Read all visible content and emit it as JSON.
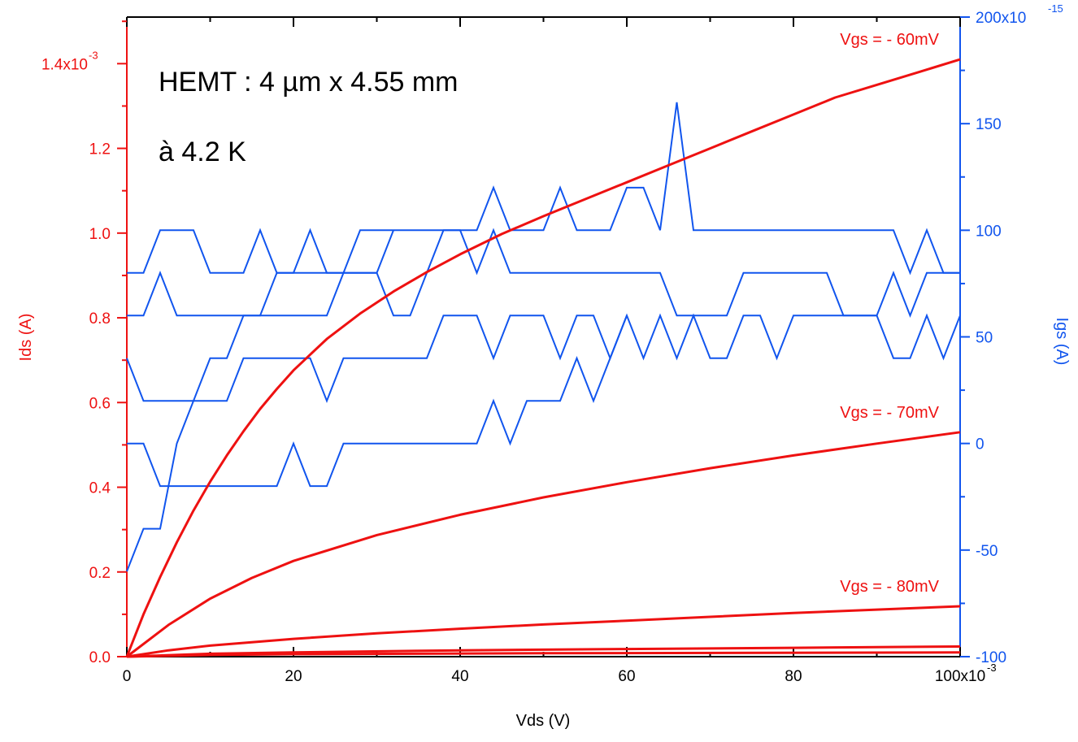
{
  "colors": {
    "left": "#ee1111",
    "right": "#1155ee",
    "text": "#000000"
  },
  "chart_data": {
    "type": "line",
    "annotations": {
      "line1": "HEMT : 4 µm x 4.55 mm",
      "line2": "à 4.2 K"
    },
    "xlabel": "Vds (V)",
    "ylabel_left": "Ids (A)",
    "ylabel_right": "Igs (A)",
    "x_ticks": [
      "0",
      "20",
      "40",
      "60",
      "80",
      "100x10"
    ],
    "x_exponent": "-3",
    "y_left_ticks": [
      "0.0",
      "0.2",
      "0.4",
      "0.6",
      "0.8",
      "1.0",
      "1.2",
      "1.4x10"
    ],
    "y_left_exponent": "-3",
    "y_right_ticks": [
      "-100",
      "-50",
      "0",
      "50",
      "100",
      "150",
      "200x10"
    ],
    "y_right_exponent": "-15",
    "xlim": [
      0,
      0.1
    ],
    "ylim_left": [
      0,
      0.00151
    ],
    "ylim_right": [
      -1e-13,
      2e-13
    ],
    "grid": false,
    "ids_series": [
      {
        "name": "Vgs = - 60mV",
        "x": [
          0,
          0.002,
          0.004,
          0.006,
          0.008,
          0.01,
          0.012,
          0.014,
          0.016,
          0.018,
          0.02,
          0.024,
          0.028,
          0.032,
          0.036,
          0.04,
          0.045,
          0.05,
          0.055,
          0.06,
          0.065,
          0.07,
          0.075,
          0.08,
          0.085,
          0.09,
          0.095,
          0.1
        ],
        "y": [
          0,
          0.0001,
          0.000188,
          0.00027,
          0.000345,
          0.000413,
          0.000475,
          0.000532,
          0.000585,
          0.000632,
          0.000676,
          0.00075,
          0.00081,
          0.000862,
          0.000908,
          0.00095,
          0.000998,
          0.00104,
          0.00108,
          0.00112,
          0.00116,
          0.0012,
          0.00124,
          0.00128,
          0.00132,
          0.00135,
          0.00138,
          0.00141
        ]
      },
      {
        "name": "Vgs = - 70mV",
        "x": [
          0,
          0.005,
          0.01,
          0.015,
          0.02,
          0.03,
          0.04,
          0.05,
          0.06,
          0.07,
          0.08,
          0.09,
          0.1
        ],
        "y": [
          0,
          7.5e-05,
          0.000137,
          0.000186,
          0.000226,
          0.000287,
          0.000335,
          0.000376,
          0.000412,
          0.000445,
          0.000475,
          0.000503,
          0.00053
        ]
      },
      {
        "name": "Vgs = - 80mV",
        "x": [
          0,
          0.005,
          0.01,
          0.02,
          0.03,
          0.04,
          0.05,
          0.06,
          0.07,
          0.08,
          0.09,
          0.1
        ],
        "y": [
          0,
          1.5e-05,
          2.6e-05,
          4.2e-05,
          5.5e-05,
          6.6e-05,
          7.6e-05,
          8.5e-05,
          9.4e-05,
          0.000103,
          0.000111,
          0.000119
        ]
      },
      {
        "name": "",
        "x": [
          0,
          0.01,
          0.02,
          0.04,
          0.06,
          0.08,
          0.1
        ],
        "y": [
          0,
          7e-06,
          1e-05,
          1.5e-05,
          1.8e-05,
          2.1e-05,
          2.4e-05
        ]
      },
      {
        "name": "",
        "x": [
          0,
          0.01,
          0.02,
          0.05,
          0.1
        ],
        "y": [
          0,
          4e-06,
          6e-06,
          8e-06,
          1e-05
        ]
      }
    ],
    "igs_series": [
      {
        "x": [
          0,
          0.002,
          0.004,
          0.006,
          0.008,
          0.01,
          0.012,
          0.014,
          0.016,
          0.018,
          0.02,
          0.022,
          0.024,
          0.026,
          0.028,
          0.03,
          0.032,
          0.034,
          0.036,
          0.038,
          0.04,
          0.042,
          0.044,
          0.046,
          0.048,
          0.05,
          0.052,
          0.054,
          0.056,
          0.058,
          0.06,
          0.062,
          0.064,
          0.066,
          0.068,
          0.07,
          0.072,
          0.074,
          0.076,
          0.078,
          0.08,
          0.082,
          0.084,
          0.086,
          0.088,
          0.09,
          0.092,
          0.094,
          0.096,
          0.098,
          0.1
        ],
        "y": [
          8e-14,
          8e-14,
          1e-13,
          1e-13,
          1e-13,
          8e-14,
          8e-14,
          8e-14,
          1e-13,
          8e-14,
          8e-14,
          1e-13,
          8e-14,
          8e-14,
          1e-13,
          1e-13,
          1e-13,
          1e-13,
          1e-13,
          1e-13,
          1e-13,
          1e-13,
          1.2e-13,
          1e-13,
          1e-13,
          1e-13,
          1.2e-13,
          1e-13,
          1e-13,
          1e-13,
          1.2e-13,
          1.2e-13,
          1e-13,
          1.6e-13,
          1e-13,
          1e-13,
          1e-13,
          1e-13,
          1e-13,
          1e-13,
          1e-13,
          1e-13,
          1e-13,
          1e-13,
          1e-13,
          1e-13,
          1e-13,
          8e-14,
          1e-13,
          8e-14,
          8e-14
        ]
      },
      {
        "x": [
          0,
          0.002,
          0.004,
          0.006,
          0.008,
          0.01,
          0.012,
          0.014,
          0.016,
          0.018,
          0.02,
          0.022,
          0.024,
          0.026,
          0.028,
          0.03,
          0.032,
          0.034,
          0.036,
          0.038,
          0.04,
          0.042,
          0.044,
          0.046,
          0.048,
          0.05,
          0.052,
          0.054,
          0.056,
          0.058,
          0.06,
          0.062,
          0.064,
          0.066,
          0.068,
          0.07,
          0.072,
          0.074,
          0.076,
          0.078,
          0.08,
          0.082,
          0.084,
          0.086,
          0.088,
          0.09,
          0.092,
          0.094,
          0.096,
          0.098,
          0.1
        ],
        "y": [
          6e-14,
          6e-14,
          8e-14,
          6e-14,
          6e-14,
          6e-14,
          6e-14,
          6e-14,
          6e-14,
          6e-14,
          6e-14,
          6e-14,
          6e-14,
          8e-14,
          8e-14,
          8e-14,
          6e-14,
          6e-14,
          8e-14,
          1e-13,
          1e-13,
          8e-14,
          1e-13,
          8e-14,
          8e-14,
          8e-14,
          8e-14,
          8e-14,
          8e-14,
          8e-14,
          8e-14,
          8e-14,
          8e-14,
          6e-14,
          6e-14,
          6e-14,
          6e-14,
          8e-14,
          8e-14,
          8e-14,
          8e-14,
          8e-14,
          8e-14,
          6e-14,
          6e-14,
          6e-14,
          8e-14,
          6e-14,
          8e-14,
          8e-14,
          8e-14
        ]
      },
      {
        "x": [
          0,
          0.002,
          0.004,
          0.006,
          0.008,
          0.01,
          0.012,
          0.014,
          0.016,
          0.018,
          0.02,
          0.022,
          0.024,
          0.026,
          0.028,
          0.03,
          0.032,
          0.034,
          0.036,
          0.038,
          0.04,
          0.042,
          0.044,
          0.046,
          0.048,
          0.05,
          0.052,
          0.054,
          0.056,
          0.058,
          0.06,
          0.062,
          0.064,
          0.066,
          0.068,
          0.07,
          0.072,
          0.074,
          0.076,
          0.078,
          0.08,
          0.082,
          0.084,
          0.086,
          0.088,
          0.09,
          0.092,
          0.094,
          0.096,
          0.098,
          0.1
        ],
        "y": [
          4e-14,
          2e-14,
          2e-14,
          2e-14,
          2e-14,
          2e-14,
          2e-14,
          4e-14,
          4e-14,
          4e-14,
          4e-14,
          4e-14,
          2e-14,
          4e-14,
          4e-14,
          4e-14,
          4e-14,
          4e-14,
          4e-14,
          6e-14,
          6e-14,
          6e-14,
          4e-14,
          6e-14,
          6e-14,
          6e-14,
          4e-14,
          6e-14,
          6e-14,
          4e-14,
          6e-14,
          4e-14,
          6e-14,
          4e-14,
          6e-14,
          4e-14,
          4e-14,
          6e-14,
          6e-14,
          4e-14,
          6e-14,
          6e-14,
          6e-14,
          6e-14,
          6e-14,
          6e-14,
          4e-14,
          4e-14,
          6e-14,
          4e-14,
          6e-14
        ]
      },
      {
        "x": [
          0,
          0.002,
          0.004,
          0.006,
          0.008,
          0.01,
          0.012,
          0.014,
          0.016,
          0.018,
          0.02,
          0.022,
          0.024,
          0.026,
          0.028,
          0.03,
          0.032,
          0.034,
          0.036,
          0.038,
          0.04,
          0.042,
          0.044,
          0.046,
          0.048,
          0.05,
          0.052,
          0.054,
          0.056,
          0.058,
          0.06
        ],
        "y": [
          0,
          0,
          -2e-14,
          -2e-14,
          -2e-14,
          -2e-14,
          -2e-14,
          -2e-14,
          -2e-14,
          -2e-14,
          0,
          -2e-14,
          -2e-14,
          0,
          0,
          0,
          0,
          0,
          0,
          0,
          0,
          0,
          2e-14,
          0,
          2e-14,
          2e-14,
          2e-14,
          4e-14,
          2e-14,
          4e-14,
          6e-14
        ]
      },
      {
        "x": [
          0,
          0.002,
          0.004,
          0.006,
          0.008,
          0.01,
          0.012,
          0.014,
          0.016,
          0.018,
          0.02,
          0.024,
          0.028,
          0.03,
          0.032
        ],
        "y": [
          -6e-14,
          -4e-14,
          -4e-14,
          0,
          2e-14,
          4e-14,
          4e-14,
          6e-14,
          6e-14,
          8e-14,
          8e-14,
          8e-14,
          8e-14,
          8e-14,
          1e-13
        ]
      }
    ]
  }
}
